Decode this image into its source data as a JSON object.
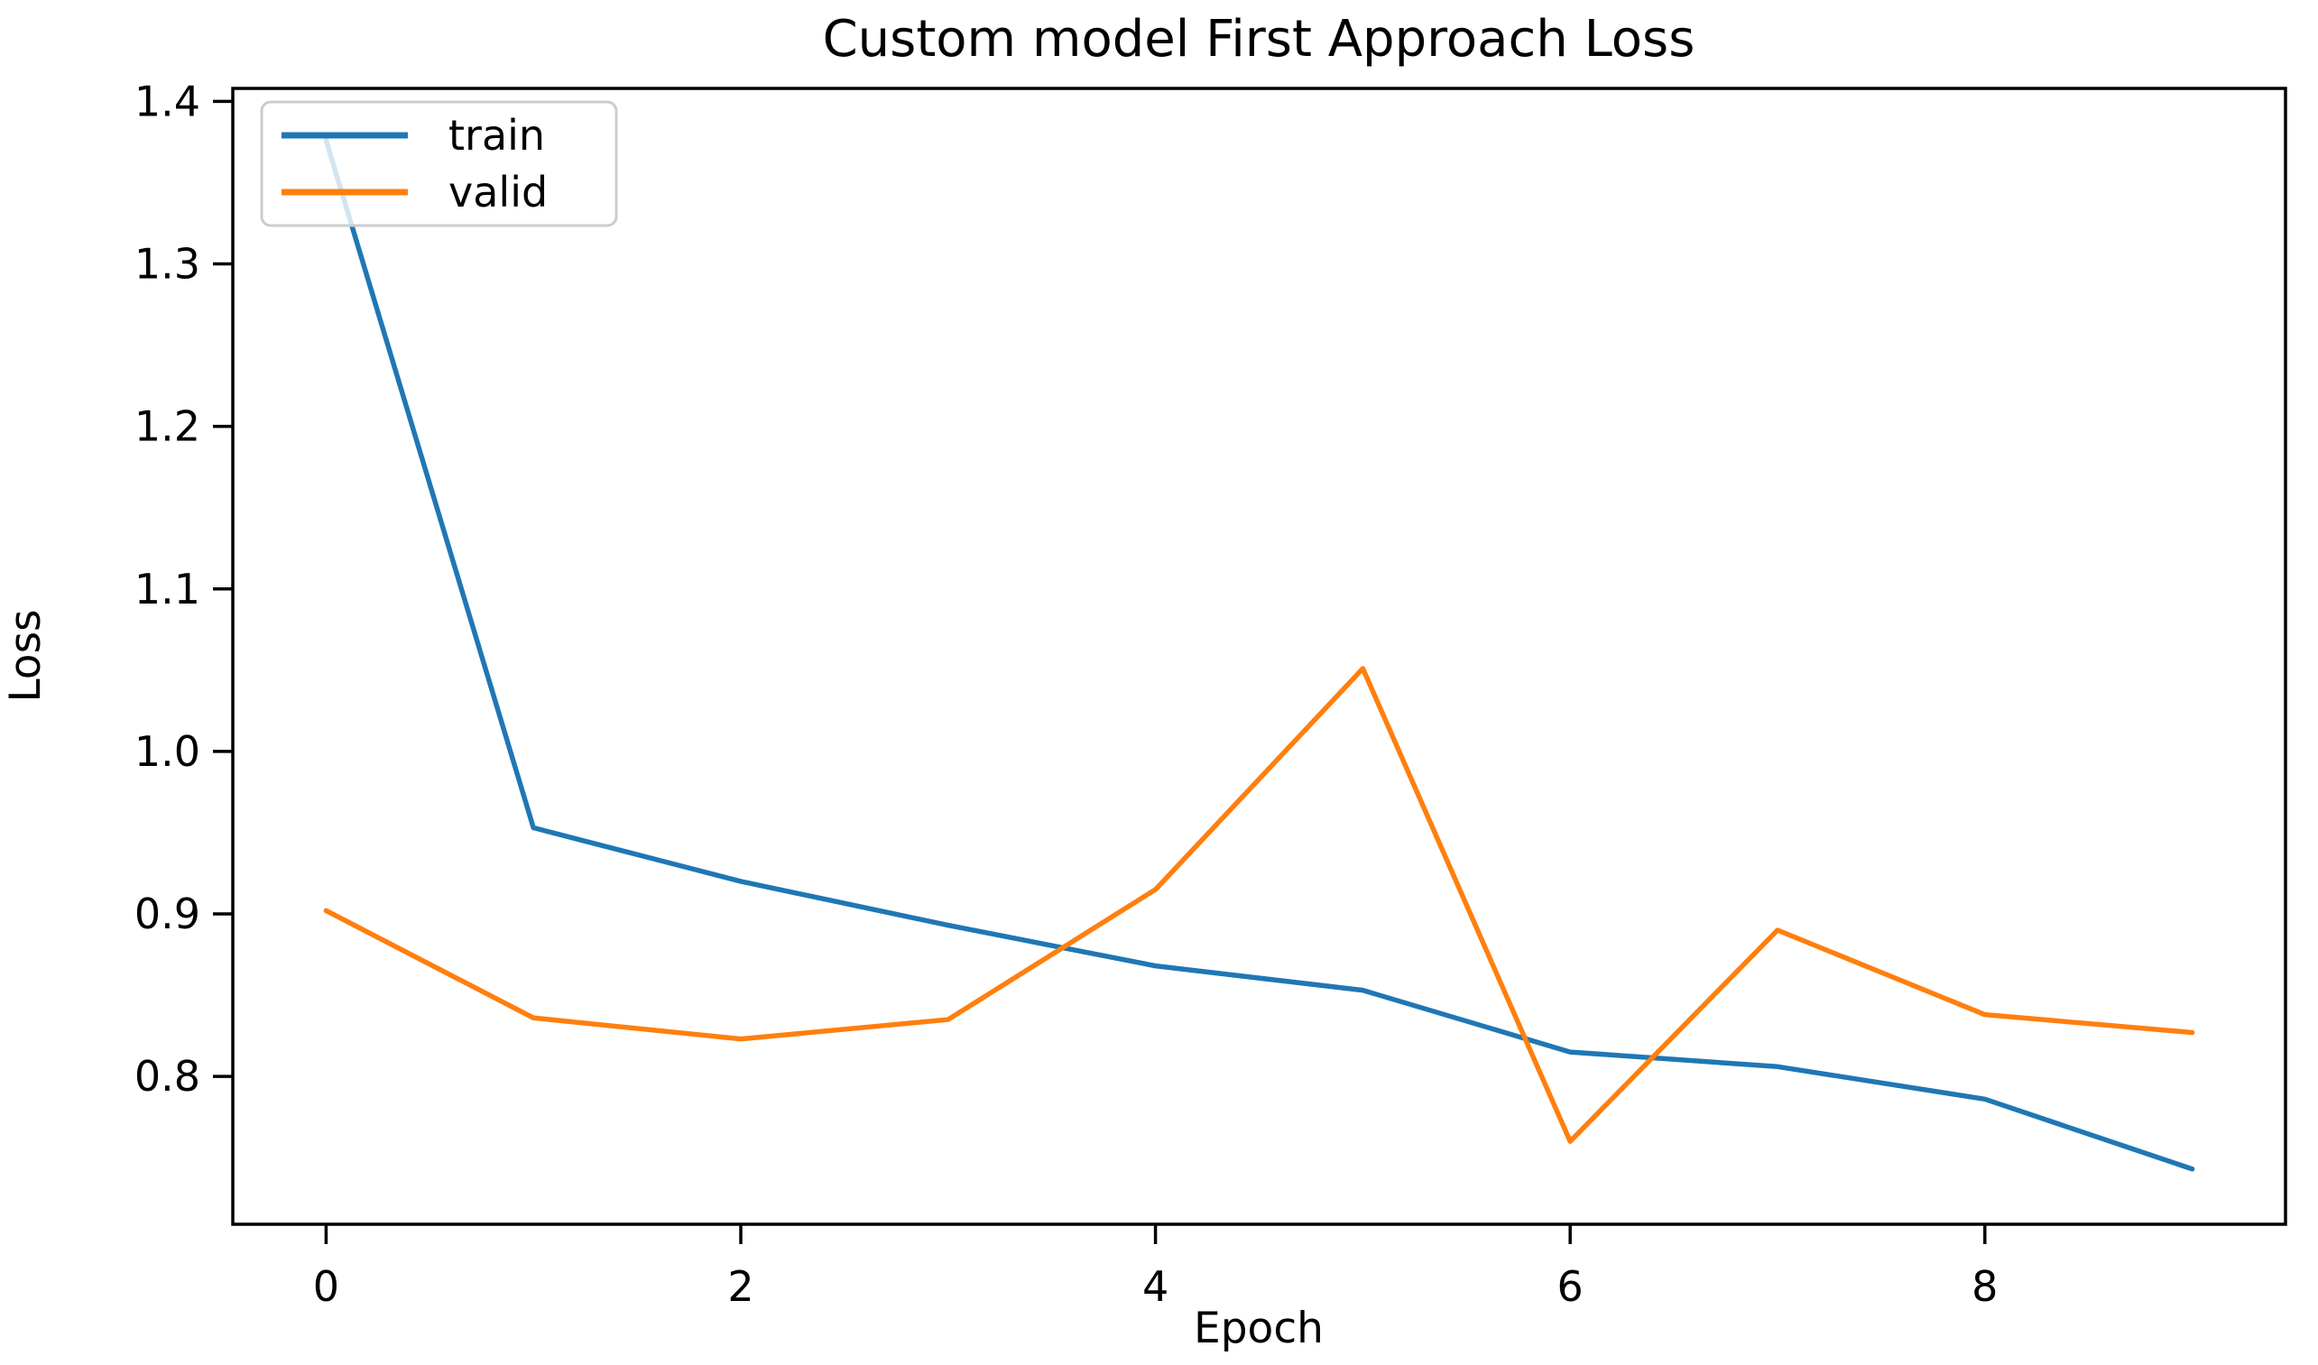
{
  "figure": {
    "background": "#ffffff",
    "spine_color": "#000000",
    "text_color": "#000000",
    "legend_border_color": "#cccccc",
    "legend_fill_opacity": 0.8
  },
  "chart_data": {
    "type": "line",
    "title": "Custom model First Approach Loss",
    "xlabel": "Epoch",
    "ylabel": "Loss",
    "x": [
      0,
      1,
      2,
      3,
      4,
      5,
      6,
      7,
      8,
      9
    ],
    "series": [
      {
        "name": "train",
        "color": "#1f77b4",
        "values": [
          1.376,
          0.953,
          0.92,
          0.893,
          0.868,
          0.853,
          0.815,
          0.806,
          0.786,
          0.743
        ]
      },
      {
        "name": "valid",
        "color": "#ff7f0e",
        "values": [
          0.902,
          0.836,
          0.823,
          0.835,
          0.915,
          1.051,
          0.76,
          0.89,
          0.838,
          0.827
        ]
      }
    ],
    "xticks": [
      0,
      2,
      4,
      6,
      8
    ],
    "yticks": [
      1.4,
      1.3,
      1.2,
      1.1,
      1.0,
      0.9,
      0.8
    ],
    "xlim": [
      -0.45,
      9.45
    ],
    "ylim": [
      0.709,
      1.408
    ],
    "grid": false,
    "legend": {
      "position": "upper left",
      "entries": [
        "train",
        "valid"
      ]
    }
  }
}
